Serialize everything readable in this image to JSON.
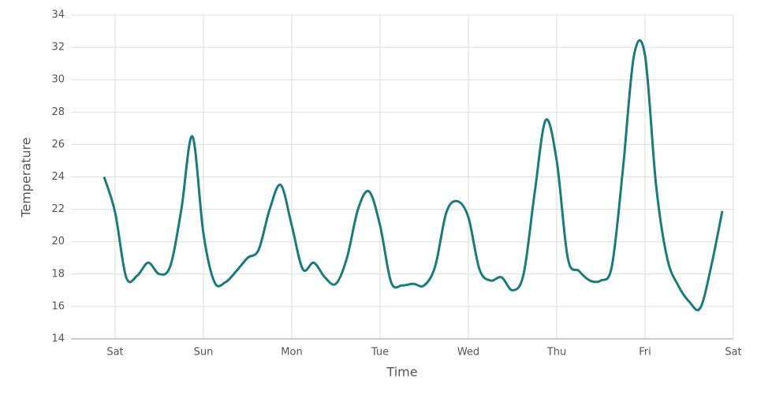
{
  "chart_data": {
    "type": "line",
    "x_label": "Time",
    "y_label": "Temperature",
    "x": [
      -0.125,
      0,
      0.125,
      0.25,
      0.375,
      0.5,
      0.625,
      0.75,
      0.875,
      1,
      1.125,
      1.25,
      1.375,
      1.5,
      1.625,
      1.75,
      1.875,
      2,
      2.125,
      2.25,
      2.375,
      2.5,
      2.625,
      2.75,
      2.875,
      3,
      3.125,
      3.25,
      3.375,
      3.5,
      3.625,
      3.75,
      3.875,
      4,
      4.125,
      4.25,
      4.375,
      4.5,
      4.625,
      4.75,
      4.875,
      5,
      5.125,
      5.25,
      5.375,
      5.5,
      5.625,
      5.75,
      5.875,
      6,
      6.125,
      6.25,
      6.375,
      6.5,
      6.625,
      6.75,
      6.875
    ],
    "series": [
      {
        "color": "#1b7b7b",
        "values": [
          24.0,
          21.8,
          17.8,
          17.9,
          18.7,
          18.0,
          18.5,
          22.0,
          26.5,
          20.5,
          17.5,
          17.5,
          18.2,
          19.0,
          19.5,
          22.0,
          23.5,
          21.0,
          18.3,
          18.7,
          17.8,
          17.4,
          19.0,
          22.0,
          23.1,
          21.0,
          17.5,
          17.3,
          17.4,
          17.3,
          18.5,
          21.8,
          22.5,
          21.5,
          18.3,
          17.6,
          17.8,
          17.0,
          18.0,
          23.0,
          27.5,
          25.0,
          19.0,
          18.2,
          17.6,
          17.6,
          18.5,
          24.5,
          31.5,
          31.5,
          23.5,
          19.0,
          17.3,
          16.3,
          15.9,
          18.5,
          21.9
        ]
      }
    ],
    "xlim": [
      -0.5,
      7
    ],
    "xticks": [
      {
        "value": 0,
        "label": "Sat"
      },
      {
        "value": 1,
        "label": "Sun"
      },
      {
        "value": 2,
        "label": "Mon"
      },
      {
        "value": 3,
        "label": "Tue"
      },
      {
        "value": 4,
        "label": "Wed"
      },
      {
        "value": 5,
        "label": "Thu"
      },
      {
        "value": 6,
        "label": "Fri"
      },
      {
        "value": 7,
        "label": "Sat"
      }
    ],
    "ylim": [
      14,
      34
    ],
    "yticks": [
      14,
      16,
      18,
      20,
      22,
      24,
      26,
      28,
      30,
      32,
      34
    ],
    "grid": true
  }
}
